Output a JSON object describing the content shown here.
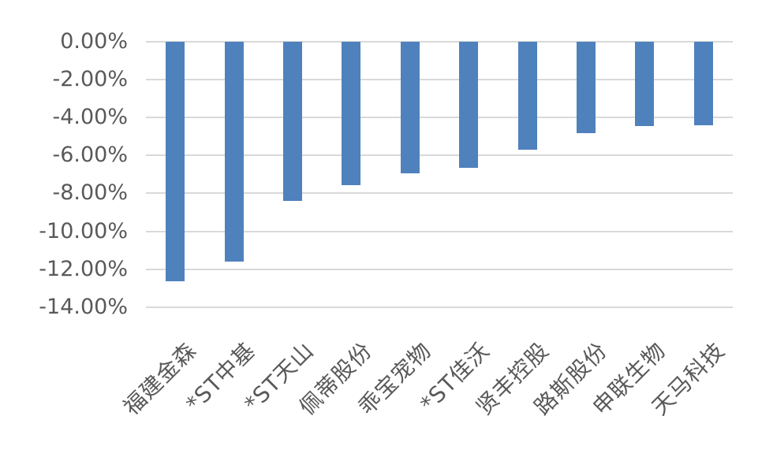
{
  "chart_data": {
    "type": "bar",
    "orientation": "vertical-negative",
    "categories": [
      "福建金森",
      "*ST中基",
      "*ST天山",
      "佩蒂股份",
      "乖宝宠物",
      "*ST佳沃",
      "贤丰控股",
      "路斯股份",
      "申联生物",
      "天马科技"
    ],
    "values": [
      -12.62,
      -11.58,
      -8.4,
      -7.55,
      -6.95,
      -6.65,
      -5.7,
      -4.85,
      -4.45,
      -4.4
    ],
    "value_unit": "%",
    "title": "",
    "xlabel": "",
    "ylabel": "",
    "ylim": [
      -14,
      0
    ],
    "y_tick_labels": [
      "0.00%",
      "-2.00%",
      "-4.00%",
      "-6.00%",
      "-8.00%",
      "-10.00%",
      "-12.00%",
      "-14.00%"
    ],
    "y_tick_values": [
      0,
      -2,
      -4,
      -6,
      -8,
      -10,
      -12,
      -14
    ],
    "grid": true,
    "legend": "none",
    "colors": {
      "bar": "#4f81bd",
      "gridline": "#d9d9d9",
      "axis_text": "#595959",
      "background": "#ffffff"
    }
  }
}
